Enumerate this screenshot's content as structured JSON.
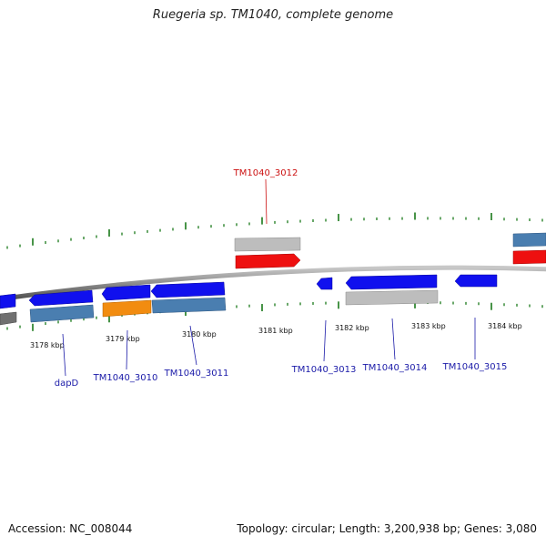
{
  "title": "Ruegeria sp. TM1040, complete genome",
  "footer": {
    "accession": "Accession: NC_008044",
    "summary": "Topology: circular; Length: 3,200,938 bp; Genes: 3,080"
  },
  "colors": {
    "gene_blue": "#1010ee",
    "gene_steel": "#4a7eb0",
    "gene_orange": "#f28c10",
    "gene_red": "#ee1010",
    "gene_gray": "#bdbdbd",
    "tick_green": "#1a7a1a",
    "label_blue": "#1a1aa8",
    "label_red": "#cc1111",
    "backbone": "#888888"
  },
  "scale": {
    "ticks": [
      {
        "label": "3178 kbp"
      },
      {
        "label": "3179 kbp"
      },
      {
        "label": "3180 kbp"
      },
      {
        "label": "3181 kbp"
      },
      {
        "label": "3182 kbp"
      },
      {
        "label": "3183 kbp"
      },
      {
        "label": "3184 kbp"
      }
    ]
  },
  "genes": [
    {
      "label": "dapD"
    },
    {
      "label": "TM1040_3010"
    },
    {
      "label": "TM1040_3011"
    },
    {
      "label": "TM1040_3012"
    },
    {
      "label": "TM1040_3013"
    },
    {
      "label": "TM1040_3014"
    },
    {
      "label": "TM1040_3015"
    }
  ]
}
